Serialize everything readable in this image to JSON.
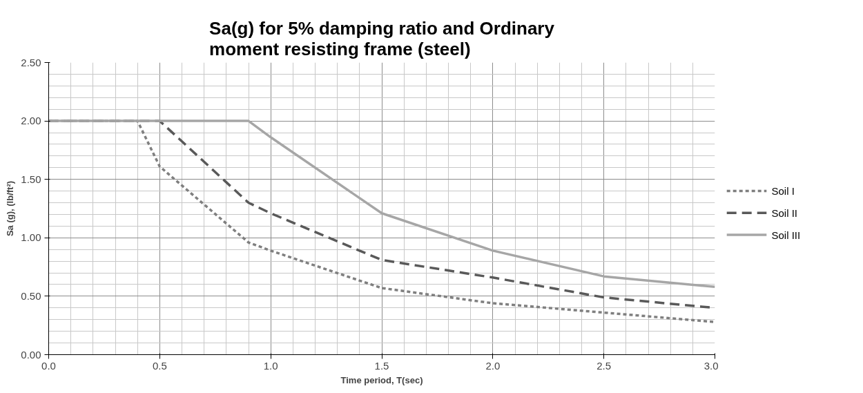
{
  "chart_data": {
    "type": "line",
    "title": "Sa(g) for 5% damping ratio and Ordinary moment resisting frame (steel)",
    "xlabel": "Time period, T(sec)",
    "ylabel": "Sa (g), (lb/ft²)",
    "xlim": [
      0,
      3
    ],
    "xticks": [
      {
        "value": 0,
        "label": "0.0"
      },
      {
        "value": 0.5,
        "label": "0.5"
      },
      {
        "value": 1,
        "label": "1.0"
      },
      {
        "value": 1.5,
        "label": "1.5"
      },
      {
        "value": 2,
        "label": "2.0"
      },
      {
        "value": 2.5,
        "label": "2.5"
      },
      {
        "value": 3,
        "label": "3.0"
      }
    ],
    "ylim": [
      0,
      2.5
    ],
    "yticks": [
      {
        "value": 0,
        "label": "0.00"
      },
      {
        "value": 0.5,
        "label": "0.50"
      },
      {
        "value": 1,
        "label": "1.00"
      },
      {
        "value": 1.5,
        "label": "1.50"
      },
      {
        "value": 2,
        "label": "2.00"
      },
      {
        "value": 2.5,
        "label": "2.50"
      }
    ],
    "grid": true,
    "legend": "right",
    "marker": "none",
    "series": [
      {
        "name": "Soil I",
        "color": "#7f7f7f",
        "line_style": "dotted",
        "x": [
          0,
          0.4,
          0.5,
          0.9,
          1.0,
          1.5,
          2.0,
          2.5,
          3.0
        ],
        "values": [
          2.0,
          2.0,
          1.61,
          0.96,
          0.89,
          0.57,
          0.44,
          0.36,
          0.28
        ]
      },
      {
        "name": "Soil II",
        "color": "#595959",
        "line_style": "dashed",
        "x": [
          0,
          0.5,
          0.9,
          1.0,
          1.5,
          2.0,
          2.5,
          3.0
        ],
        "values": [
          2.0,
          2.0,
          1.3,
          1.21,
          0.81,
          0.66,
          0.49,
          0.4
        ]
      },
      {
        "name": "Soil III",
        "color": "#a6a6a6",
        "line_style": "solid",
        "x": [
          0,
          0.9,
          1.0,
          1.5,
          2.0,
          2.5,
          3.0
        ],
        "values": [
          2.0,
          2.0,
          1.86,
          1.21,
          0.89,
          0.67,
          0.58
        ]
      }
    ]
  }
}
